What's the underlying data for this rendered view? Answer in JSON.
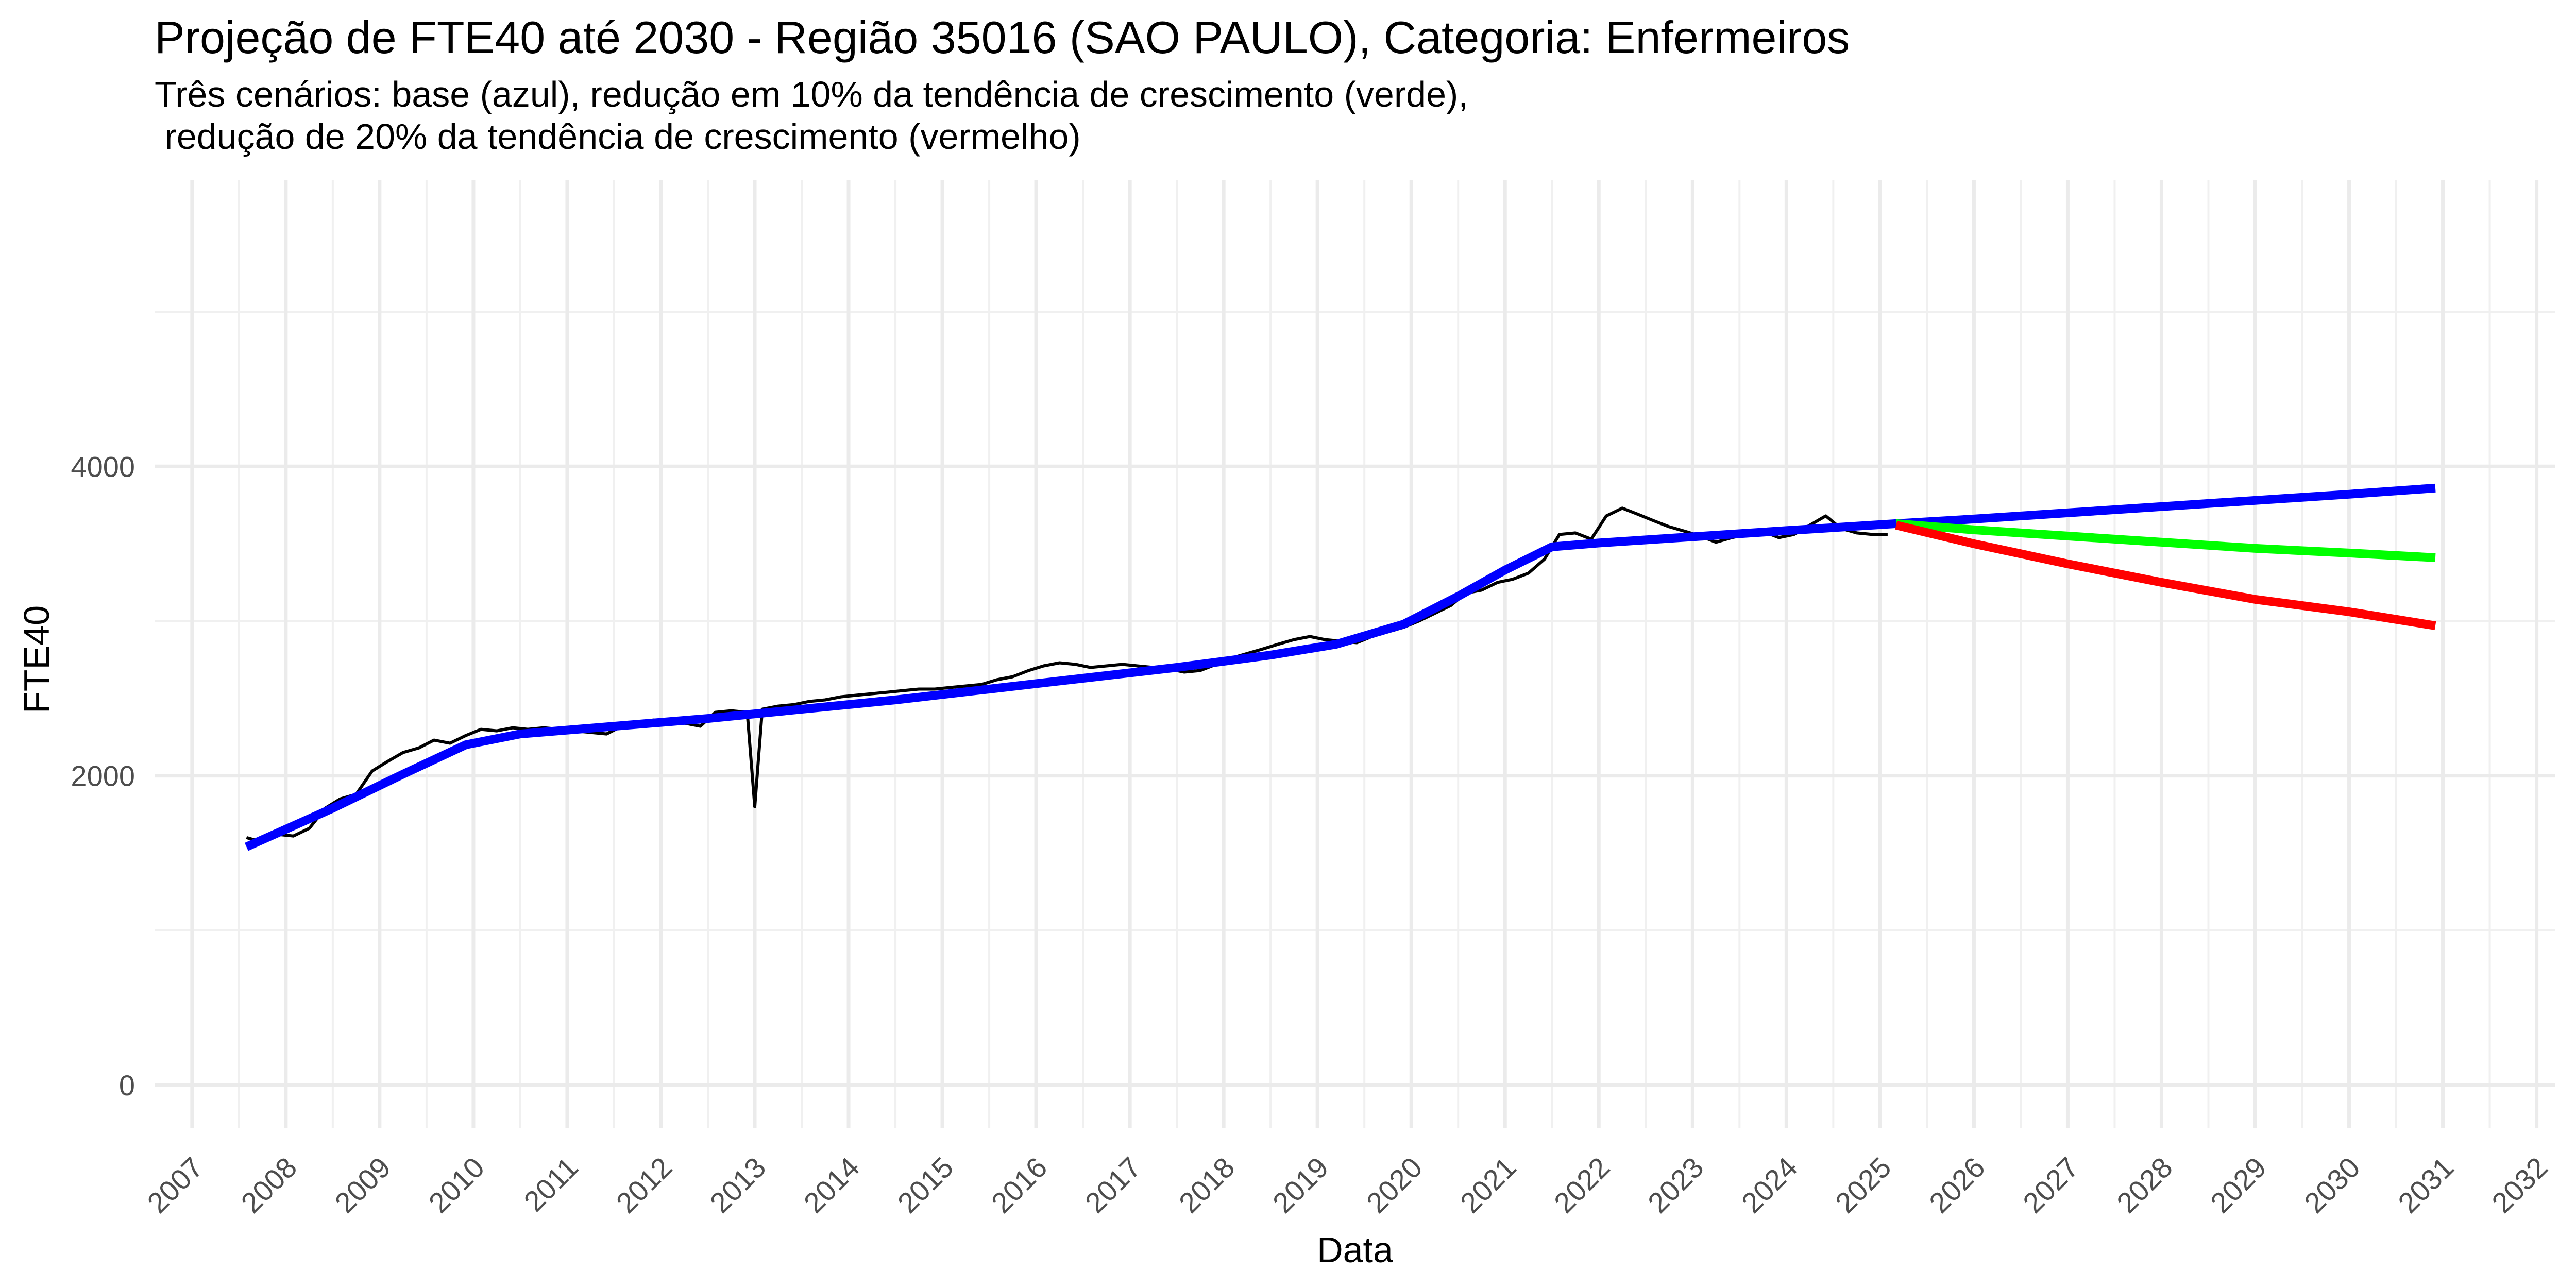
{
  "chart_data": {
    "type": "line",
    "title": "Projeção de FTE40 até 2030 - Região 35016 (SAO PAULO), Categoria: Enfermeiros",
    "subtitle": "Três cenários: base (azul), redução em 10% da tendência de crescimento (verde),\n redução de 20% da tendência de crescimento (vermelho)",
    "xlabel": "Data",
    "ylabel": "FTE40",
    "xlim": [
      2006.6,
      2032.2
    ],
    "ylim": [
      -280,
      5850
    ],
    "y_ticks": [
      0,
      2000,
      4000
    ],
    "y_tick_labels": [
      "0",
      "2000",
      "4000"
    ],
    "x_ticks": [
      2007,
      2008,
      2009,
      2010,
      2011,
      2012,
      2013,
      2014,
      2015,
      2016,
      2017,
      2018,
      2019,
      2020,
      2021,
      2022,
      2023,
      2024,
      2025,
      2026,
      2027,
      2028,
      2029,
      2030,
      2031,
      2032
    ],
    "x_tick_labels": [
      "2007",
      "2008",
      "2009",
      "2010",
      "2011",
      "2012",
      "2013",
      "2014",
      "2015",
      "2016",
      "2017",
      "2018",
      "2019",
      "2020",
      "2021",
      "2022",
      "2023",
      "2024",
      "2025",
      "2026",
      "2027",
      "2028",
      "2029",
      "2030",
      "2031",
      "2032"
    ],
    "grid": true,
    "legend": "none",
    "series": [
      {
        "color": "#000000",
        "x": [
          2007.58,
          2007.75,
          2007.92,
          2008.08,
          2008.25,
          2008.42,
          2008.58,
          2008.75,
          2008.92,
          2009.08,
          2009.25,
          2009.42,
          2009.58,
          2009.75,
          2009.92,
          2010.08,
          2010.25,
          2010.42,
          2010.58,
          2010.75,
          2010.92,
          2011.08,
          2011.25,
          2011.42,
          2011.58,
          2011.75,
          2011.92,
          2012.08,
          2012.25,
          2012.42,
          2012.58,
          2012.75,
          2012.92,
          2013.0,
          2013.08,
          2013.25,
          2013.42,
          2013.58,
          2013.75,
          2013.92,
          2014.08,
          2014.25,
          2014.42,
          2014.58,
          2014.75,
          2014.92,
          2015.08,
          2015.25,
          2015.42,
          2015.58,
          2015.75,
          2015.92,
          2016.08,
          2016.25,
          2016.42,
          2016.58,
          2016.75,
          2016.92,
          2017.08,
          2017.25,
          2017.42,
          2017.58,
          2017.75,
          2017.92,
          2018.08,
          2018.25,
          2018.42,
          2018.58,
          2018.75,
          2018.92,
          2019.08,
          2019.25,
          2019.42,
          2019.58,
          2019.75,
          2019.92,
          2020.08,
          2020.25,
          2020.42,
          2020.58,
          2020.75,
          2020.92,
          2021.08,
          2021.25,
          2021.42,
          2021.58,
          2021.75,
          2021.92,
          2022.08,
          2022.25,
          2022.42,
          2022.58,
          2022.75,
          2022.92,
          2023.08,
          2023.25,
          2023.42,
          2023.58,
          2023.75,
          2023.92,
          2024.08,
          2024.25,
          2024.42,
          2024.58,
          2024.75,
          2024.92,
          2025.08
        ],
        "y": [
          1600,
          1570,
          1620,
          1610,
          1660,
          1790,
          1850,
          1880,
          2030,
          2090,
          2150,
          2180,
          2230,
          2210,
          2260,
          2300,
          2290,
          2310,
          2300,
          2310,
          2300,
          2290,
          2280,
          2270,
          2320,
          2340,
          2360,
          2350,
          2340,
          2320,
          2410,
          2420,
          2410,
          1800,
          2430,
          2450,
          2460,
          2480,
          2490,
          2510,
          2520,
          2530,
          2540,
          2550,
          2560,
          2560,
          2570,
          2580,
          2590,
          2620,
          2640,
          2680,
          2710,
          2730,
          2720,
          2700,
          2710,
          2720,
          2710,
          2700,
          2690,
          2670,
          2680,
          2720,
          2760,
          2790,
          2820,
          2850,
          2880,
          2900,
          2880,
          2870,
          2860,
          2900,
          2930,
          2960,
          3000,
          3050,
          3100,
          3180,
          3200,
          3250,
          3270,
          3310,
          3400,
          3560,
          3570,
          3530,
          3680,
          3730,
          3690,
          3650,
          3610,
          3580,
          3550,
          3510,
          3540,
          3560,
          3580,
          3540,
          3560,
          3620,
          3680,
          3600,
          3570,
          3560,
          3560
        ]
      },
      {
        "color": "#0000ff",
        "x": [
          2007.58,
          2008.5,
          2009.25,
          2009.92,
          2010.5,
          2011.5,
          2012.5,
          2013.5,
          2014.5,
          2015.5,
          2016.5,
          2017.5,
          2018.5,
          2019.2,
          2019.92,
          2020.5,
          2021.0,
          2021.5,
          2022.0,
          2023.0,
          2024.0,
          2025.17,
          2026.0,
          2027.0,
          2028.0,
          2029.0,
          2030.0,
          2030.92
        ],
        "y": [
          1540,
          1790,
          2010,
          2200,
          2270,
          2320,
          2370,
          2430,
          2490,
          2560,
          2630,
          2700,
          2780,
          2850,
          2980,
          3160,
          3330,
          3480,
          3505,
          3545,
          3585,
          3630,
          3660,
          3700,
          3740,
          3780,
          3820,
          3860
        ]
      },
      {
        "color": "#00ff00",
        "x": [
          2025.17,
          2026.0,
          2027.0,
          2028.0,
          2029.0,
          2030.0,
          2030.92
        ],
        "y": [
          3630,
          3590,
          3550,
          3510,
          3470,
          3440,
          3410
        ]
      },
      {
        "color": "#ff0000",
        "x": [
          2025.17,
          2026.0,
          2027.0,
          2028.0,
          2029.0,
          2030.0,
          2030.92
        ],
        "y": [
          3620,
          3500,
          3370,
          3250,
          3140,
          3060,
          2970
        ]
      }
    ]
  }
}
